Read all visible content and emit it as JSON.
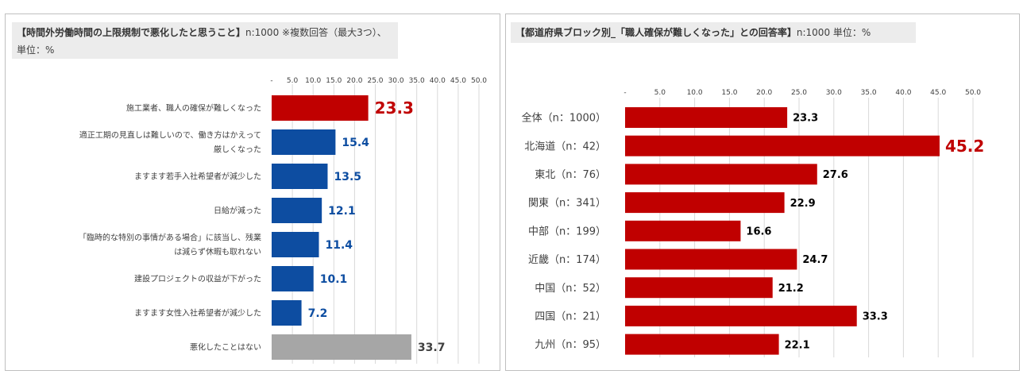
{
  "colors": {
    "red": "#c00000",
    "blue": "#0d4da1",
    "gray": "#a6a6a6",
    "grid": "#d9d9d9"
  },
  "left": {
    "title_bold": "【時間外労働時間の上限規制で悪化したと思うこと】",
    "title_rest": "n:1000 ※複数回答（最大3つ）、",
    "title_line2": "単位：%"
  },
  "right": {
    "title_bold": "【都道府県ブロック別_「職人確保が難しくなった」との回答率】",
    "title_rest": "n:1000 単位：%"
  },
  "chart_data": [
    {
      "type": "bar",
      "orientation": "horizontal",
      "categories": [
        [
          "施工業者、職人の確保が難しくなった"
        ],
        [
          "適正工期の見直しは難しいので、働き方はかえって",
          "厳しくなった"
        ],
        [
          "ますます若手入社希望者が減少した"
        ],
        [
          "日給が減った"
        ],
        [
          "「臨時的な特別の事情がある場合」に該当し、残業",
          "は減らず休暇も取れない"
        ],
        [
          "建設プロジェクトの収益が下がった"
        ],
        [
          "ますます女性入社希望者が減少した"
        ],
        [
          "悪化したことはない"
        ]
      ],
      "values": [
        23.3,
        15.4,
        13.5,
        12.1,
        11.4,
        10.1,
        7.2,
        33.7
      ],
      "value_labels": [
        "23.3",
        "15.4",
        "13.5",
        "12.1",
        "11.4",
        "10.1",
        "7.2",
        "33.7"
      ],
      "bar_colors": [
        "red",
        "blue",
        "blue",
        "blue",
        "blue",
        "blue",
        "blue",
        "gray"
      ],
      "highlight_index": 0,
      "ticks": [
        "-",
        "5.0",
        "10.0",
        "15.0",
        "20.0",
        "25.0",
        "30.0",
        "35.0",
        "40.0",
        "45.0",
        "50.0"
      ],
      "xlim": [
        0,
        50
      ],
      "grid": true
    },
    {
      "type": "bar",
      "orientation": "horizontal",
      "categories": [
        "全体（n：1000）",
        "北海道（n：42）",
        "東北（n：76）",
        "関東（n：341）",
        "中部（n：199）",
        "近畿（n：174）",
        "中国（n：52）",
        "四国（n：21）",
        "九州（n：95）"
      ],
      "values": [
        23.3,
        45.2,
        27.6,
        22.9,
        16.6,
        24.7,
        21.2,
        33.3,
        22.1
      ],
      "value_labels": [
        "23.3",
        "45.2",
        "27.6",
        "22.9",
        "16.6",
        "24.7",
        "21.2",
        "33.3",
        "22.1"
      ],
      "bar_color": "red",
      "highlight_index": 1,
      "ticks": [
        "-",
        "5.0",
        "10.0",
        "15.0",
        "20.0",
        "25.0",
        "30.0",
        "35.0",
        "40.0",
        "45.0",
        "50.0"
      ],
      "xlim": [
        0,
        50
      ],
      "grid": true
    }
  ]
}
